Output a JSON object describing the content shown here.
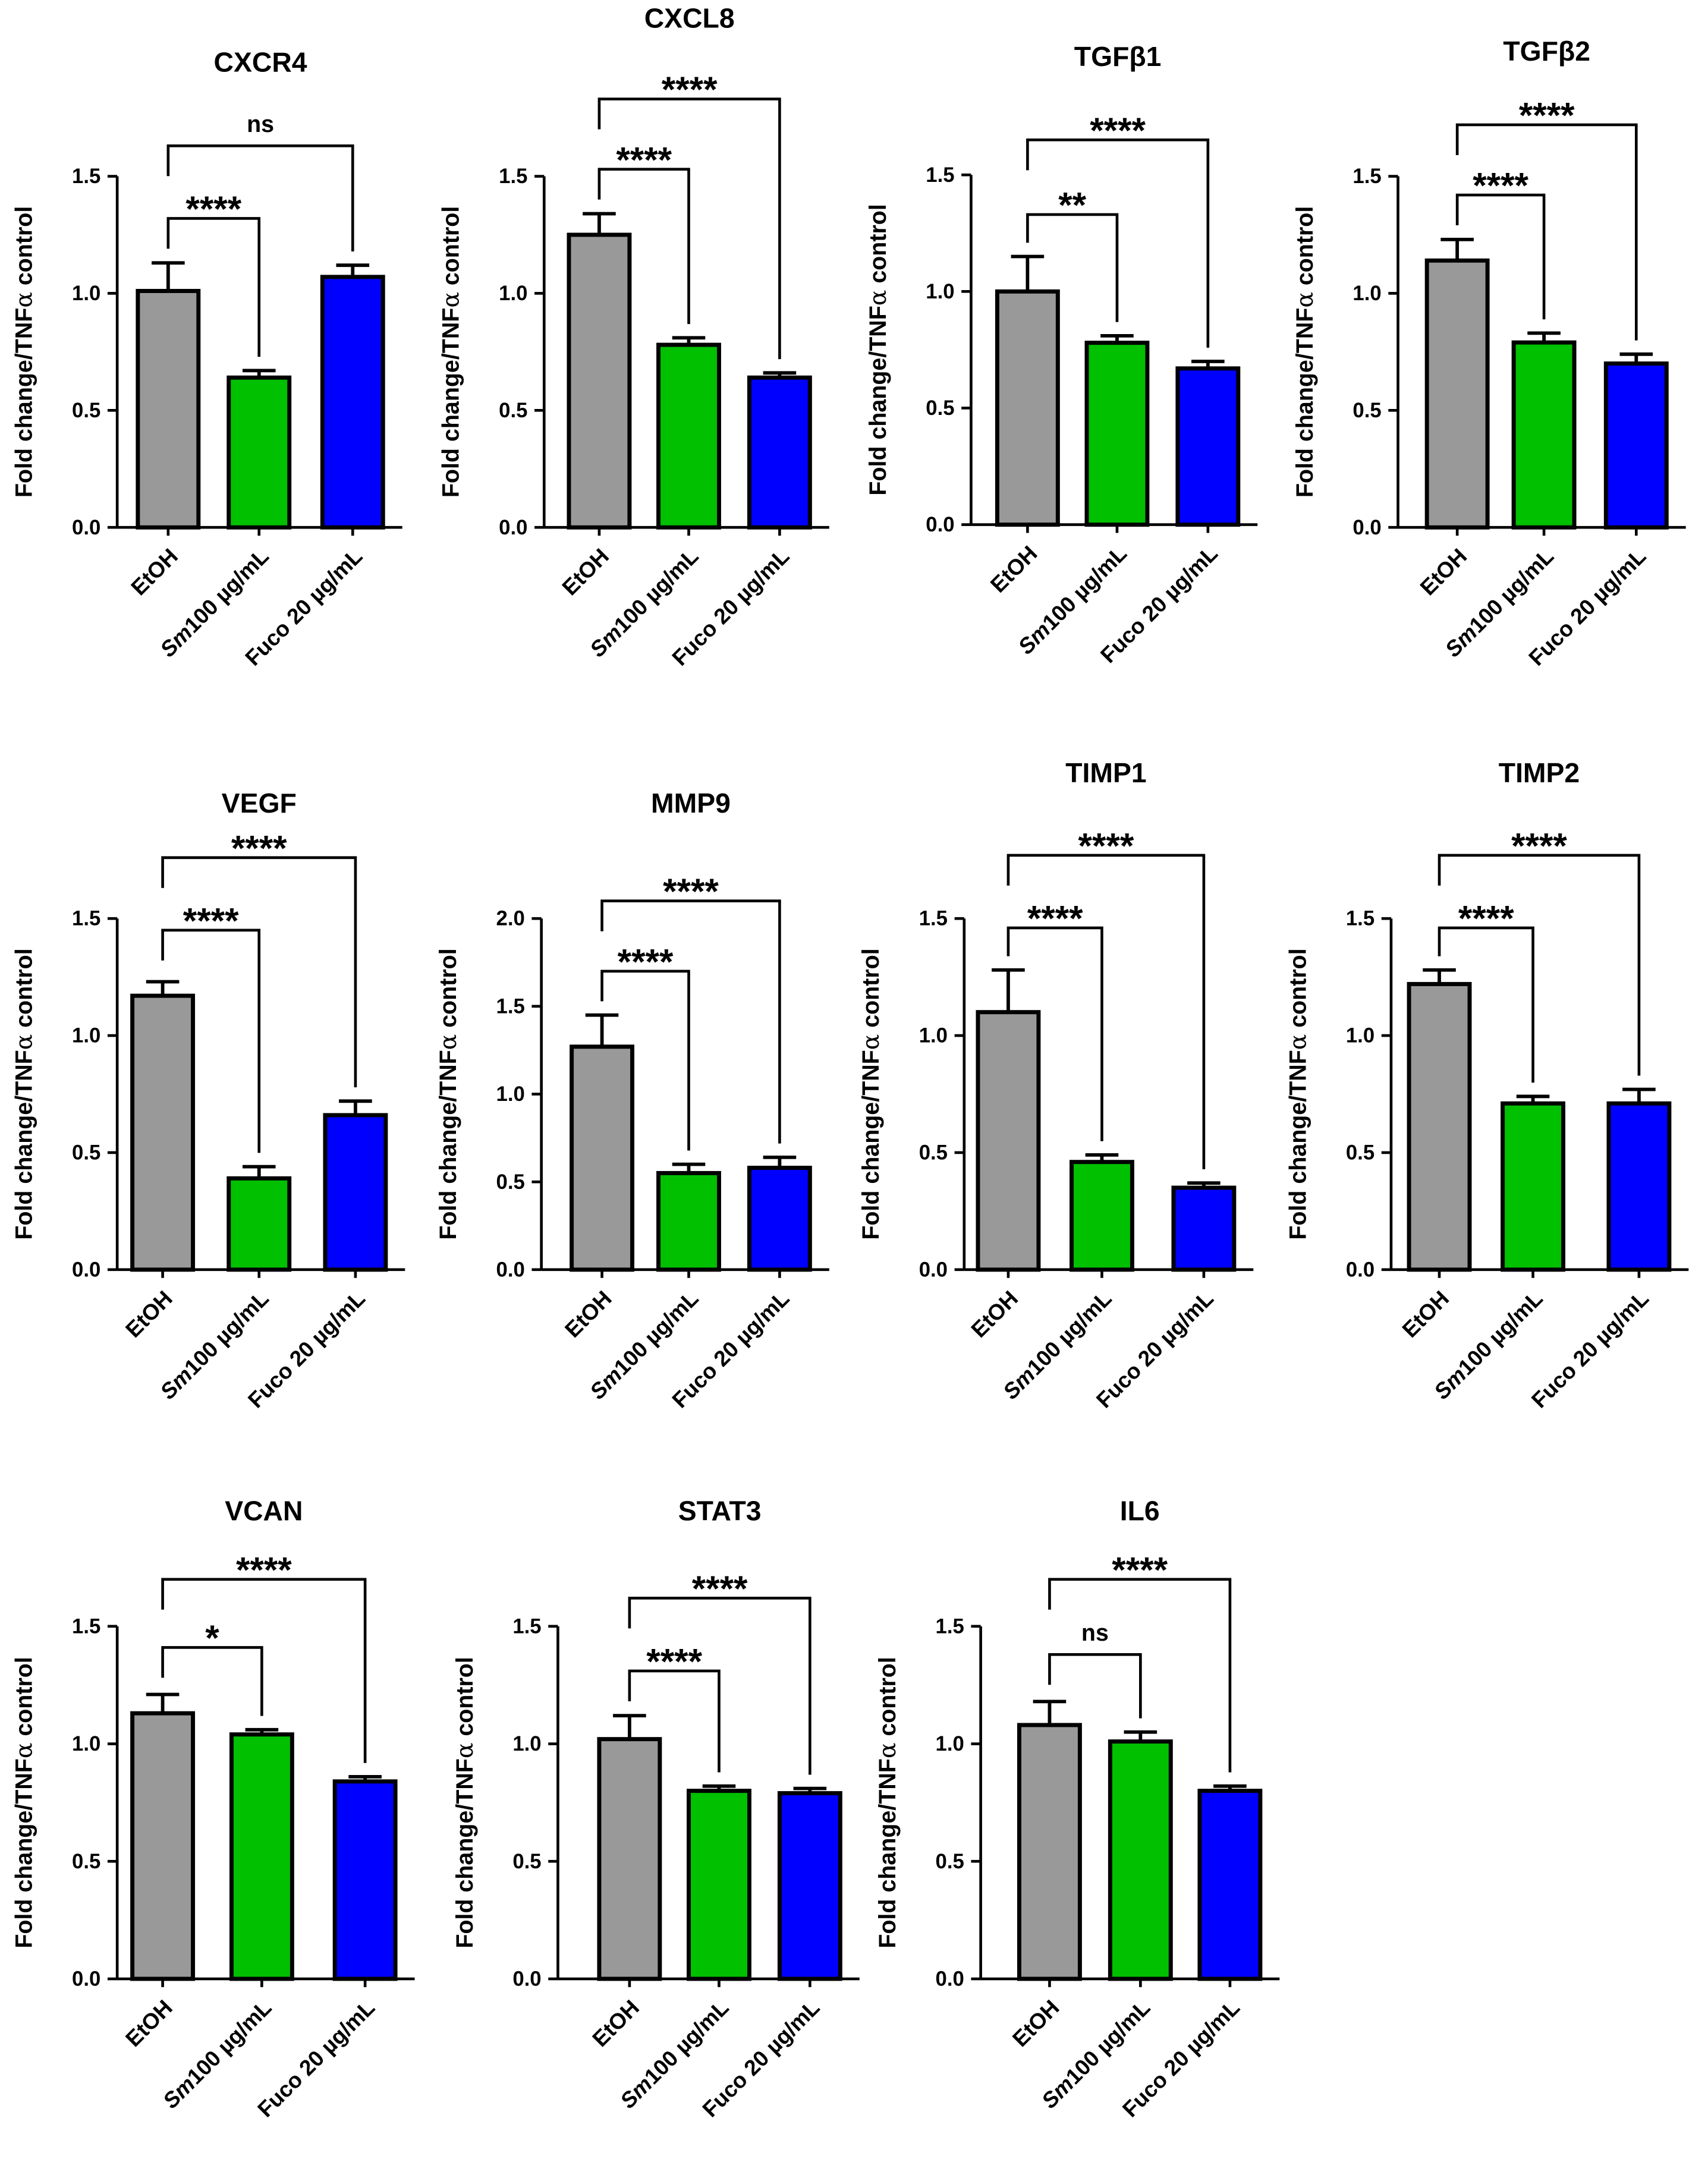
{
  "chart_data": {
    "type": "bar",
    "ylabel": "Fold change/TNF",
    "ylabel_greek": "α",
    "ylabel_suffix": " control",
    "categories": [
      {
        "italic": "",
        "rest": "EtOH"
      },
      {
        "italic": "Sm",
        "rest": "100 µg/mL"
      },
      {
        "italic": "",
        "rest": "Fuco 20 µg/mL"
      }
    ],
    "colors": [
      "#999999",
      "#00c000",
      "#0000ff"
    ],
    "panels": [
      {
        "title": "CXCR4",
        "ylim": [
          0,
          1.5
        ],
        "ticks": [
          "0.0",
          "0.5",
          "1.0",
          "1.5"
        ],
        "values": [
          1.01,
          0.64,
          1.07
        ],
        "errors": [
          0.12,
          0.03,
          0.05
        ],
        "brackets": [
          {
            "from": 0,
            "to": 1,
            "label": "****",
            "level": 1.32
          },
          {
            "from": 0,
            "to": 2,
            "label": "ns",
            "level": 1.63
          }
        ]
      },
      {
        "title": "CXCL8",
        "ylim": [
          0,
          1.5
        ],
        "ticks": [
          "0.0",
          "0.5",
          "1.0",
          "1.5"
        ],
        "values": [
          1.25,
          0.78,
          0.64
        ],
        "errors": [
          0.09,
          0.03,
          0.02
        ],
        "brackets": [
          {
            "from": 0,
            "to": 1,
            "label": "****",
            "level": 1.53
          },
          {
            "from": 0,
            "to": 2,
            "label": "****",
            "level": 1.83
          }
        ]
      },
      {
        "title": "TGFβ1",
        "ylim": [
          0,
          1.5
        ],
        "ticks": [
          "0.0",
          "0.5",
          "1.0",
          "1.5"
        ],
        "values": [
          1.0,
          0.78,
          0.67
        ],
        "errors": [
          0.15,
          0.03,
          0.03
        ],
        "brackets": [
          {
            "from": 0,
            "to": 1,
            "label": "**",
            "level": 1.33
          },
          {
            "from": 0,
            "to": 2,
            "label": "****",
            "level": 1.65
          }
        ]
      },
      {
        "title": "TGFβ2",
        "ylim": [
          0,
          1.5
        ],
        "ticks": [
          "0.0",
          "0.5",
          "1.0",
          "1.5"
        ],
        "values": [
          1.14,
          0.79,
          0.7
        ],
        "errors": [
          0.09,
          0.04,
          0.04
        ],
        "brackets": [
          {
            "from": 0,
            "to": 1,
            "label": "****",
            "level": 1.42
          },
          {
            "from": 0,
            "to": 2,
            "label": "****",
            "level": 1.72
          }
        ]
      },
      {
        "title": "VEGF",
        "ylim": [
          0,
          1.5
        ],
        "ticks": [
          "0.0",
          "0.5",
          "1.0",
          "1.5"
        ],
        "values": [
          1.17,
          0.39,
          0.66
        ],
        "errors": [
          0.06,
          0.05,
          0.06
        ],
        "brackets": [
          {
            "from": 0,
            "to": 1,
            "label": "****",
            "level": 1.45
          },
          {
            "from": 0,
            "to": 2,
            "label": "****",
            "level": 1.76
          }
        ]
      },
      {
        "title": "MMP9",
        "ylim": [
          0,
          2.0
        ],
        "ticks": [
          "0.0",
          "0.5",
          "1.0",
          "1.5",
          "2.0"
        ],
        "values": [
          1.27,
          0.55,
          0.58
        ],
        "errors": [
          0.18,
          0.05,
          0.06
        ],
        "brackets": [
          {
            "from": 0,
            "to": 1,
            "label": "****",
            "level": 1.7
          },
          {
            "from": 0,
            "to": 2,
            "label": "****",
            "level": 2.1
          }
        ]
      },
      {
        "title": "TIMP1",
        "ylim": [
          0,
          1.5
        ],
        "ticks": [
          "0.0",
          "0.5",
          "1.0",
          "1.5"
        ],
        "values": [
          1.1,
          0.46,
          0.35
        ],
        "errors": [
          0.18,
          0.03,
          0.02
        ],
        "brackets": [
          {
            "from": 0,
            "to": 1,
            "label": "****",
            "level": 1.46
          },
          {
            "from": 0,
            "to": 2,
            "label": "****",
            "level": 1.77
          }
        ]
      },
      {
        "title": "TIMP2",
        "ylim": [
          0,
          1.5
        ],
        "ticks": [
          "0.0",
          "0.5",
          "1.0",
          "1.5"
        ],
        "values": [
          1.22,
          0.71,
          0.71
        ],
        "errors": [
          0.06,
          0.03,
          0.06
        ],
        "brackets": [
          {
            "from": 0,
            "to": 1,
            "label": "****",
            "level": 1.46
          },
          {
            "from": 0,
            "to": 2,
            "label": "****",
            "level": 1.77
          }
        ]
      },
      {
        "title": "VCAN",
        "ylim": [
          0,
          1.5
        ],
        "ticks": [
          "0.0",
          "0.5",
          "1.0",
          "1.5"
        ],
        "values": [
          1.13,
          1.04,
          0.84
        ],
        "errors": [
          0.08,
          0.02,
          0.02
        ],
        "brackets": [
          {
            "from": 0,
            "to": 1,
            "label": "*",
            "level": 1.41
          },
          {
            "from": 0,
            "to": 2,
            "label": "****",
            "level": 1.7
          }
        ]
      },
      {
        "title": "STAT3",
        "ylim": [
          0,
          1.5
        ],
        "ticks": [
          "0.0",
          "0.5",
          "1.0",
          "1.5"
        ],
        "values": [
          1.02,
          0.8,
          0.79
        ],
        "errors": [
          0.1,
          0.02,
          0.02
        ],
        "brackets": [
          {
            "from": 0,
            "to": 1,
            "label": "****",
            "level": 1.31
          },
          {
            "from": 0,
            "to": 2,
            "label": "****",
            "level": 1.62
          }
        ]
      },
      {
        "title": "IL6",
        "ylim": [
          0,
          1.5
        ],
        "ticks": [
          "0.0",
          "0.5",
          "1.0",
          "1.5"
        ],
        "values": [
          1.08,
          1.01,
          0.8
        ],
        "errors": [
          0.1,
          0.04,
          0.02
        ],
        "brackets": [
          {
            "from": 0,
            "to": 1,
            "label": "ns",
            "level": 1.38
          },
          {
            "from": 0,
            "to": 2,
            "label": "****",
            "level": 1.7
          }
        ]
      }
    ]
  }
}
